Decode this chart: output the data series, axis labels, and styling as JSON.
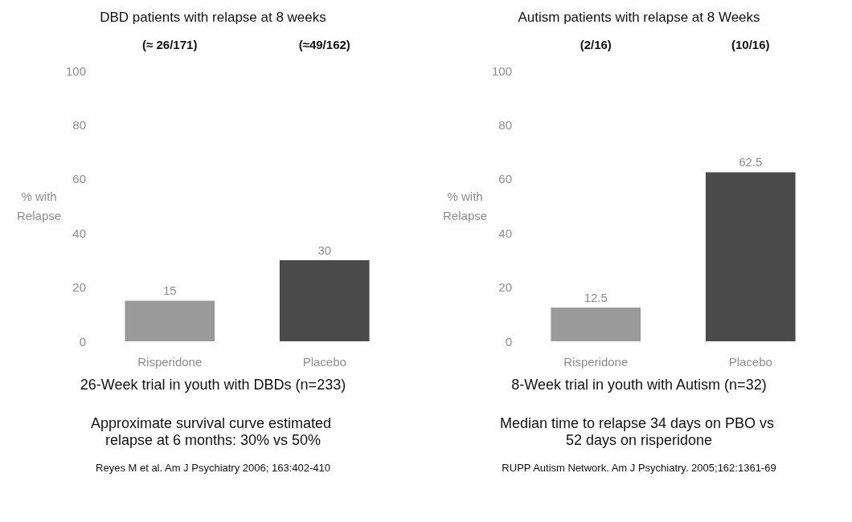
{
  "chart_data": [
    {
      "type": "bar",
      "title": "DBD patients with relapse at 8 weeks",
      "subtitle": "26-Week trial in youth with DBDs (n=233)",
      "ylabel": "% with Relapse",
      "categories": [
        "Risperidone",
        "Placebo"
      ],
      "values": [
        15,
        30
      ],
      "colors": [
        "#9a9a9a",
        "#4a4a4a"
      ],
      "ylim": [
        0,
        100
      ],
      "yticks": [
        0,
        20,
        40,
        60,
        80,
        100
      ],
      "data_labels": true,
      "annotations": [
        "(≈ 26/171)",
        "(≈49/162)",
        "Approximate survival curve estimated relapse at 6 months: 30% vs 50%",
        "Reyes M et al. Am J Psychiatry 2006; 163:402-410"
      ]
    },
    {
      "type": "bar",
      "title": "Autism patients with relapse at 8 Weeks",
      "subtitle": "8-Week trial in youth with Autism (n=32)",
      "ylabel": "% with Relapse",
      "categories": [
        "Risperidone",
        "Placebo"
      ],
      "values": [
        12.5,
        62.5
      ],
      "colors": [
        "#9a9a9a",
        "#4a4a4a"
      ],
      "ylim": [
        0,
        100
      ],
      "yticks": [
        0,
        20,
        40,
        60,
        80,
        100
      ],
      "data_labels": true,
      "annotations": [
        "(2/16)",
        "(10/16)",
        "Median time to relapse 34 days on PBO vs 52 days on risperidone",
        "RUPP Autism Network. Am J Psychiatry. 2005;162:1361-69"
      ]
    }
  ]
}
